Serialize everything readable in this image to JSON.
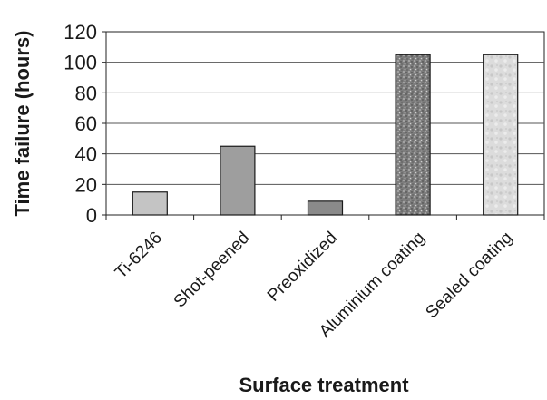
{
  "chart_data": {
    "type": "bar",
    "title": "",
    "xlabel": "Surface treatment",
    "ylabel": "Time failure (hours)",
    "categories": [
      "Ti-6246",
      "Shot-peened",
      "Preoxidized",
      "Aluminium coating",
      "Sealed coating"
    ],
    "values": [
      15,
      45,
      9,
      105,
      105
    ],
    "ylim": [
      0,
      120
    ],
    "yticks": [
      0,
      20,
      40,
      60,
      80,
      100,
      120
    ],
    "grid": true,
    "legend": "none",
    "colors": {
      "bars": [
        "#c4c4c4",
        "#9e9e9e",
        "#8a8a8a",
        "#7d7d7d",
        "#d8d8d8"
      ],
      "bar_patterns": [
        "solid",
        "solid",
        "solid",
        "speckled-dark",
        "mottled-light"
      ],
      "gridline": "#555555",
      "axis": "#222222"
    }
  }
}
